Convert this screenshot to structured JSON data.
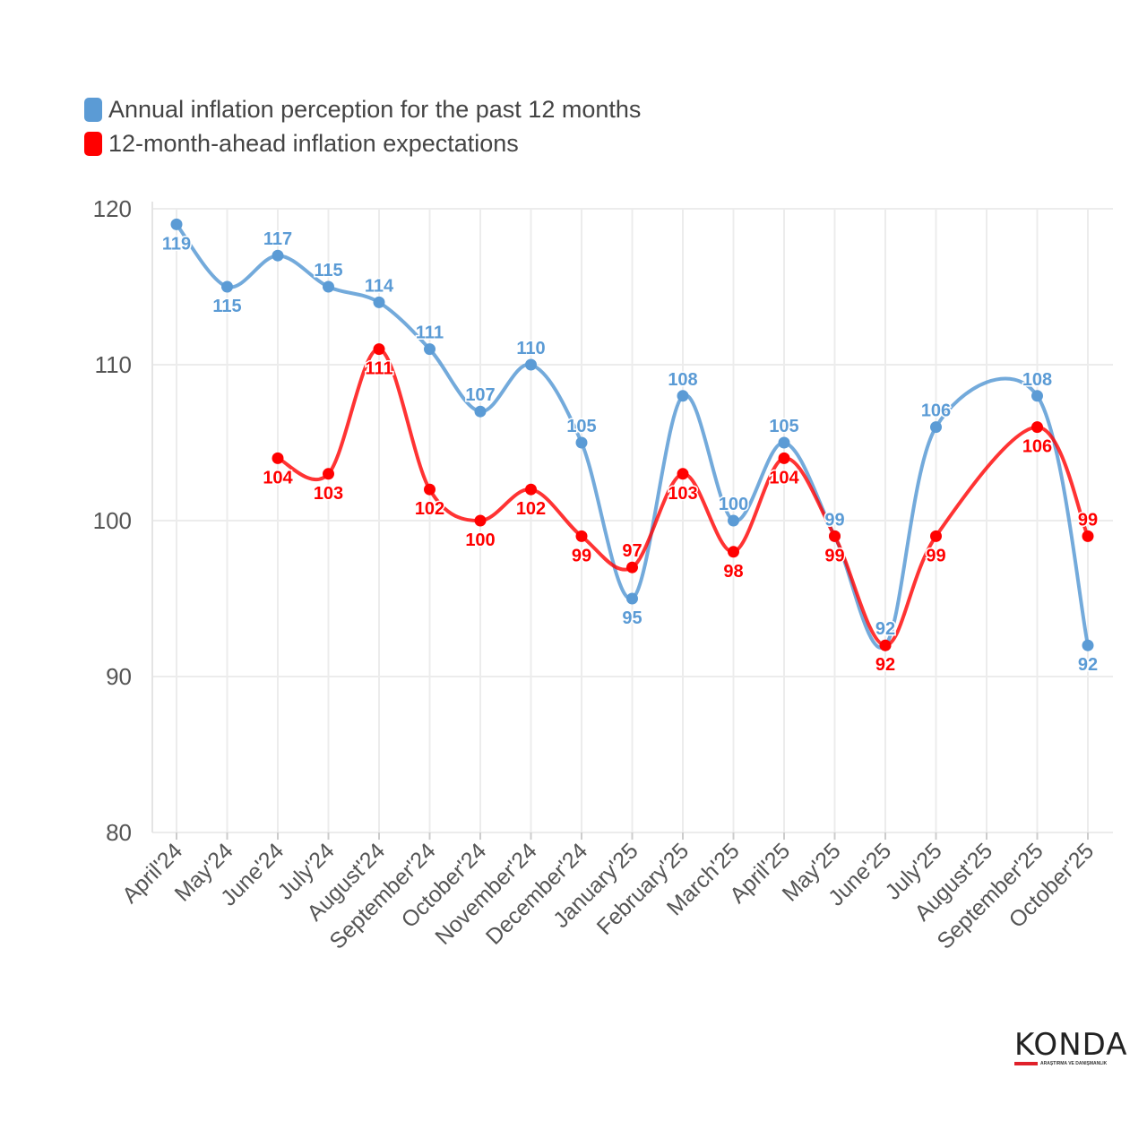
{
  "chart_data": {
    "type": "line",
    "categories": [
      "April'24",
      "May'24",
      "June'24",
      "July'24",
      "August'24",
      "September'24",
      "October'24",
      "November'24",
      "December'24",
      "January'25",
      "February'25",
      "March'25",
      "April'25",
      "May'25",
      "June'25",
      "July'25",
      "August'25",
      "September'25",
      "October'25"
    ],
    "series": [
      {
        "name": "Annual inflation perception for the past 12 months",
        "color": "#5b9bd5",
        "values": [
          119,
          115,
          117,
          115,
          114,
          111,
          107,
          110,
          105,
          95,
          108,
          100,
          105,
          99,
          92,
          106,
          null,
          108,
          92
        ]
      },
      {
        "name": "12-month-ahead inflation expectations",
        "color": "#ff0000",
        "values": [
          null,
          null,
          104,
          103,
          111,
          102,
          100,
          102,
          99,
          97,
          103,
          98,
          104,
          99,
          92,
          99,
          null,
          106,
          99
        ]
      }
    ],
    "ylim": [
      80,
      120
    ],
    "yticks": [
      80,
      90,
      100,
      110,
      120
    ],
    "grid": true,
    "legend": "top-left",
    "line_shape": "spline"
  },
  "logo": {
    "name": "KONDA",
    "tagline": "ARAŞTIRMA VE DANIŞMANLIK"
  }
}
